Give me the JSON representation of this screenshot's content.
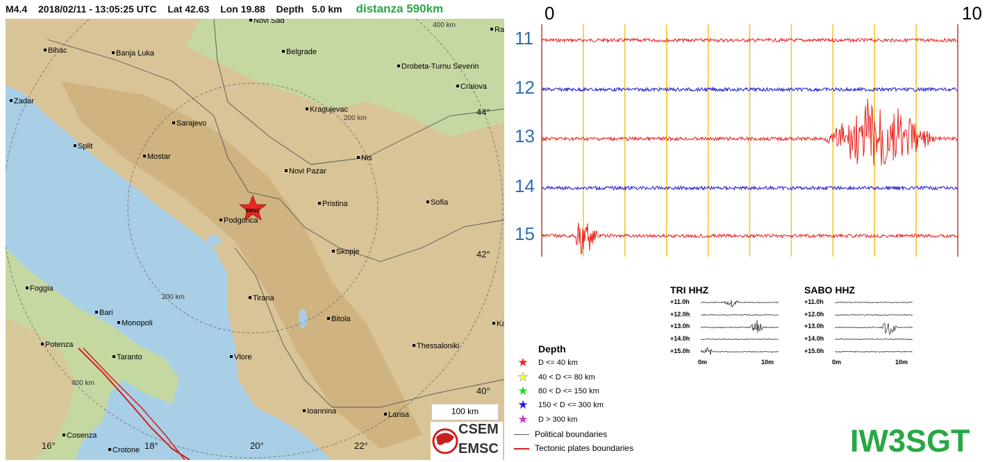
{
  "header": {
    "magnitude": "M4.4",
    "datetime": "2018/02/11 - 13:05:25 UTC",
    "lat": "Lat 42.63",
    "lon": "Lon 19.88",
    "depth": "Depth   5.0 km",
    "distance": "distanza 590km"
  },
  "map": {
    "cities": [
      {
        "name": "Novi Sad"
      },
      {
        "name": "Bihac"
      },
      {
        "name": "Banja Luka"
      },
      {
        "name": "Belgrade"
      },
      {
        "name": "Drobeta-Turnu Severin"
      },
      {
        "name": "Craiova"
      },
      {
        "name": "Zadar"
      },
      {
        "name": "Kragujevac"
      },
      {
        "name": "Sarajevo"
      },
      {
        "name": "Split"
      },
      {
        "name": "Mostar"
      },
      {
        "name": "Nis"
      },
      {
        "name": "Novi Pazar"
      },
      {
        "name": "Pristina"
      },
      {
        "name": "Sofia"
      },
      {
        "name": "Podgorica"
      },
      {
        "name": "Skopje"
      },
      {
        "name": "Foggia"
      },
      {
        "name": "Tirana"
      },
      {
        "name": "Bari"
      },
      {
        "name": "Monopoli"
      },
      {
        "name": "Bitola"
      },
      {
        "name": "Potenza"
      },
      {
        "name": "Taranto"
      },
      {
        "name": "Thessaloniki"
      },
      {
        "name": "Vlore"
      },
      {
        "name": "Ioannina"
      },
      {
        "name": "Larisa"
      },
      {
        "name": "Cosenza"
      },
      {
        "name": "Crotone"
      },
      {
        "name": "Ram"
      },
      {
        "name": "Kav"
      }
    ],
    "lat_ticks": [
      "44°",
      "42°",
      "40°"
    ],
    "lon_ticks": [
      "16°",
      "18°",
      "20°",
      "22°"
    ],
    "range_rings": [
      "200 km",
      "200 km",
      "400 km",
      "400 km"
    ],
    "epicenter_label": "EMSC",
    "scale_bar": "100 km",
    "logo_top": "CSEM",
    "logo_bottom": "EMSC"
  },
  "legend": {
    "title": "Depth",
    "items": [
      {
        "label": "D <= 40 km",
        "color": "#e8271e"
      },
      {
        "label": "40 < D <= 80 km",
        "color": "#ffff33"
      },
      {
        "label": "80 < D <= 150 km",
        "color": "#22dd22"
      },
      {
        "label": "150 < D <= 300 km",
        "color": "#1a1adf"
      },
      {
        "label": "D > 300 km",
        "color": "#cc33cc"
      }
    ],
    "political": "Political boundaries",
    "tectonic": "Tectonic plates boundaries"
  },
  "seismogram": {
    "scale_start": "0",
    "scale_end": "10",
    "hours": [
      "11",
      "12",
      "13",
      "14",
      "15"
    ],
    "trace_colors": [
      "#e8201c",
      "#1a1ad6",
      "#e8201c",
      "#1a1ad6",
      "#e8201c"
    ],
    "grid_color": "#f2c318",
    "events": [
      {
        "hour": "13",
        "start_min": 6.8,
        "peak_min": 8.0,
        "end_min": 9.5,
        "amplitude": 0.9
      },
      {
        "hour": "15",
        "start_min": 0.8,
        "peak_min": 0.9,
        "end_min": 1.4,
        "amplitude": 0.6
      }
    ]
  },
  "mini_plots": [
    {
      "title": "TRI HHZ",
      "rows": [
        "+11.0h",
        "+12.0h",
        "+13.0h",
        "+14.0h",
        "+15.0h"
      ],
      "x_start": "0m",
      "x_end": "10m"
    },
    {
      "title": "SABO HHZ",
      "rows": [
        "+11.0h",
        "+12.0h",
        "+13.0h",
        "+14.0h",
        "+15.0h"
      ],
      "x_start": "0m",
      "x_end": "10m"
    }
  ],
  "callsign": "IW3SGT"
}
